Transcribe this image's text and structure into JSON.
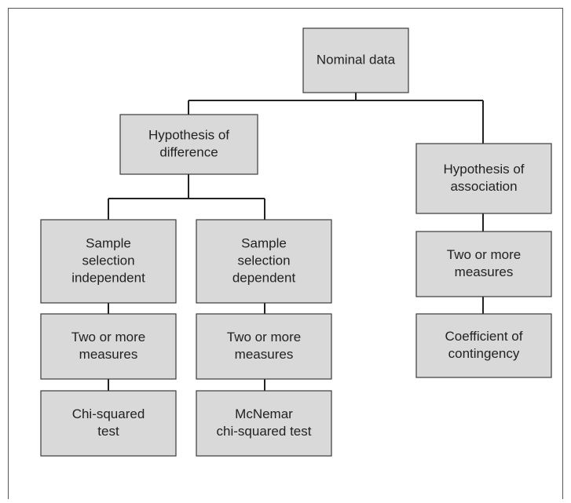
{
  "nodes": [
    {
      "lines": [
        "Nominal data"
      ]
    },
    {
      "lines": [
        "Hypothesis of",
        "difference"
      ]
    },
    {
      "lines": [
        "Hypothesis of",
        "association"
      ]
    },
    {
      "lines": [
        "Sample",
        "selection",
        "independent"
      ]
    },
    {
      "lines": [
        "Sample",
        "selection",
        "dependent"
      ]
    },
    {
      "lines": [
        "Two or more",
        "measures"
      ]
    },
    {
      "lines": [
        "Two or more",
        "measures"
      ]
    },
    {
      "lines": [
        "Chi-squared",
        "test"
      ]
    },
    {
      "lines": [
        "McNemar",
        "chi-squared test"
      ]
    },
    {
      "lines": [
        "Two or more",
        "measures"
      ]
    },
    {
      "lines": [
        "Coefficient of",
        "contingency"
      ]
    }
  ]
}
